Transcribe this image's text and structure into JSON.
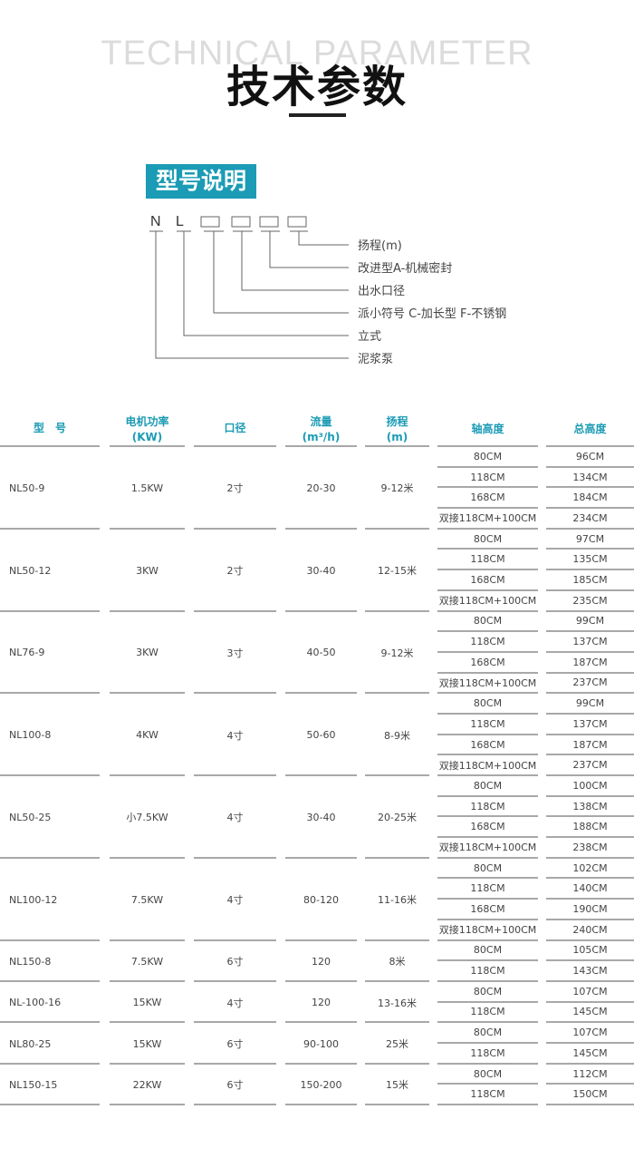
{
  "header": {
    "english_title": "TECHNICAL PARAMETER",
    "chinese_title": "技术参数"
  },
  "model_explanation": {
    "badge": "型号说明",
    "letters": [
      "N",
      "L"
    ],
    "labels": [
      "扬程(m)",
      "改进型A-机械密封",
      "出水口径",
      "派小符号 C-加长型 F-不锈钢",
      "立式",
      "泥浆泵"
    ]
  },
  "table": {
    "columns": [
      {
        "line1": "型　号",
        "line2": ""
      },
      {
        "line1": "电机功率",
        "line2": "(KW)"
      },
      {
        "line1": "口径",
        "line2": ""
      },
      {
        "line1": "流量",
        "line2": "(m³/h)"
      },
      {
        "line1": "扬程",
        "line2": "(m)"
      },
      {
        "line1": "轴高度",
        "line2": ""
      },
      {
        "line1": "总高度",
        "line2": ""
      }
    ],
    "rows": [
      {
        "model": "NL50-9",
        "power": "1.5KW",
        "caliber": "2寸",
        "flow": "20-30",
        "head": "9-12米",
        "shaft": [
          "80CM",
          "118CM",
          "168CM",
          "双接118CM+100CM"
        ],
        "total": [
          "96CM",
          "134CM",
          "184CM",
          "234CM"
        ]
      },
      {
        "model": "NL50-12",
        "power": "3KW",
        "caliber": "2寸",
        "flow": "30-40",
        "head": "12-15米",
        "shaft": [
          "80CM",
          "118CM",
          "168CM",
          "双接118CM+100CM"
        ],
        "total": [
          "97CM",
          "135CM",
          "185CM",
          "235CM"
        ]
      },
      {
        "model": "NL76-9",
        "power": "3KW",
        "caliber": "3寸",
        "flow": "40-50",
        "head": "9-12米",
        "shaft": [
          "80CM",
          "118CM",
          "168CM",
          "双接118CM+100CM"
        ],
        "total": [
          "99CM",
          "137CM",
          "187CM",
          "237CM"
        ]
      },
      {
        "model": "NL100-8",
        "power": "4KW",
        "caliber": "4寸",
        "flow": "50-60",
        "head": "8-9米",
        "shaft": [
          "80CM",
          "118CM",
          "168CM",
          "双接118CM+100CM"
        ],
        "total": [
          "99CM",
          "137CM",
          "187CM",
          "237CM"
        ]
      },
      {
        "model": "NL50-25",
        "power": "小7.5KW",
        "caliber": "4寸",
        "flow": "30-40",
        "head": "20-25米",
        "shaft": [
          "80CM",
          "118CM",
          "168CM",
          "双接118CM+100CM"
        ],
        "total": [
          "100CM",
          "138CM",
          "188CM",
          "238CM"
        ]
      },
      {
        "model": "NL100-12",
        "power": "7.5KW",
        "caliber": "4寸",
        "flow": "80-120",
        "head": "11-16米",
        "shaft": [
          "80CM",
          "118CM",
          "168CM",
          "双接118CM+100CM"
        ],
        "total": [
          "102CM",
          "140CM",
          "190CM",
          "240CM"
        ]
      },
      {
        "model": "NL150-8",
        "power": "7.5KW",
        "caliber": "6寸",
        "flow": "120",
        "head": "8米",
        "shaft": [
          "80CM",
          "118CM"
        ],
        "total": [
          "105CM",
          "143CM"
        ]
      },
      {
        "model": "NL-100-16",
        "power": "15KW",
        "caliber": "4寸",
        "flow": "120",
        "head": "13-16米",
        "shaft": [
          "80CM",
          "118CM"
        ],
        "total": [
          "107CM",
          "145CM"
        ]
      },
      {
        "model": "NL80-25",
        "power": "15KW",
        "caliber": "6寸",
        "flow": "90-100",
        "head": "25米",
        "shaft": [
          "80CM",
          "118CM"
        ],
        "total": [
          "107CM",
          "145CM"
        ]
      },
      {
        "model": "NL150-15",
        "power": "22KW",
        "caliber": "6寸",
        "flow": "150-200",
        "head": "15米",
        "shaft": [
          "80CM",
          "118CM"
        ],
        "total": [
          "112CM",
          "150CM"
        ]
      }
    ]
  },
  "colors": {
    "accent": "#1b9bb5",
    "rule": "#a8a8a8"
  }
}
